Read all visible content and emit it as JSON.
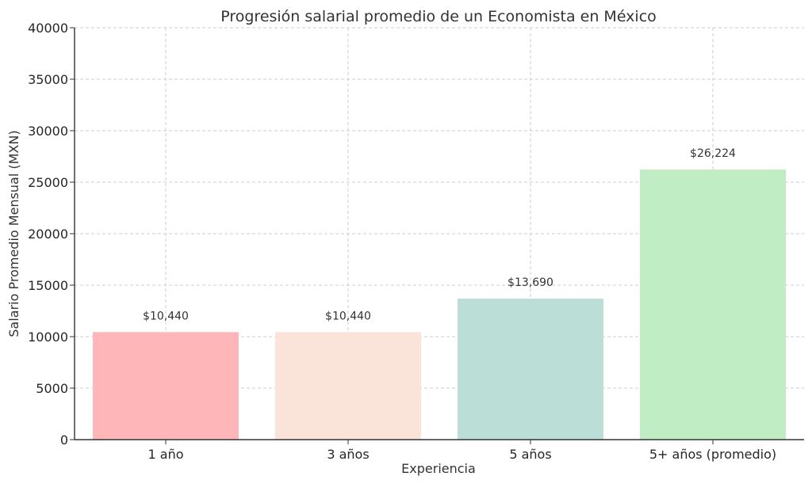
{
  "chart_data": {
    "type": "bar",
    "title": "Progresión salarial promedio de un Economista en México",
    "xlabel": "Experiencia",
    "ylabel": "Salario Promedio Mensual (MXN)",
    "categories": [
      "1 año",
      "3 años",
      "5 años",
      "5+ años (promedio)"
    ],
    "values": [
      10440,
      10440,
      13690,
      26224
    ],
    "value_labels": [
      "$10,440",
      "$10,440",
      "$13,690",
      "$26,224"
    ],
    "colors": [
      "#ffb6b9",
      "#fae3d9",
      "#bbded6",
      "#c1edc4"
    ],
    "ylim": [
      0,
      40000
    ],
    "yticks": [
      0,
      5000,
      10000,
      15000,
      20000,
      25000,
      30000,
      35000,
      40000
    ],
    "ytick_labels": [
      "0",
      "5000",
      "10000",
      "15000",
      "20000",
      "25000",
      "30000",
      "35000",
      "40000"
    ],
    "grid": true,
    "legend": "none"
  }
}
